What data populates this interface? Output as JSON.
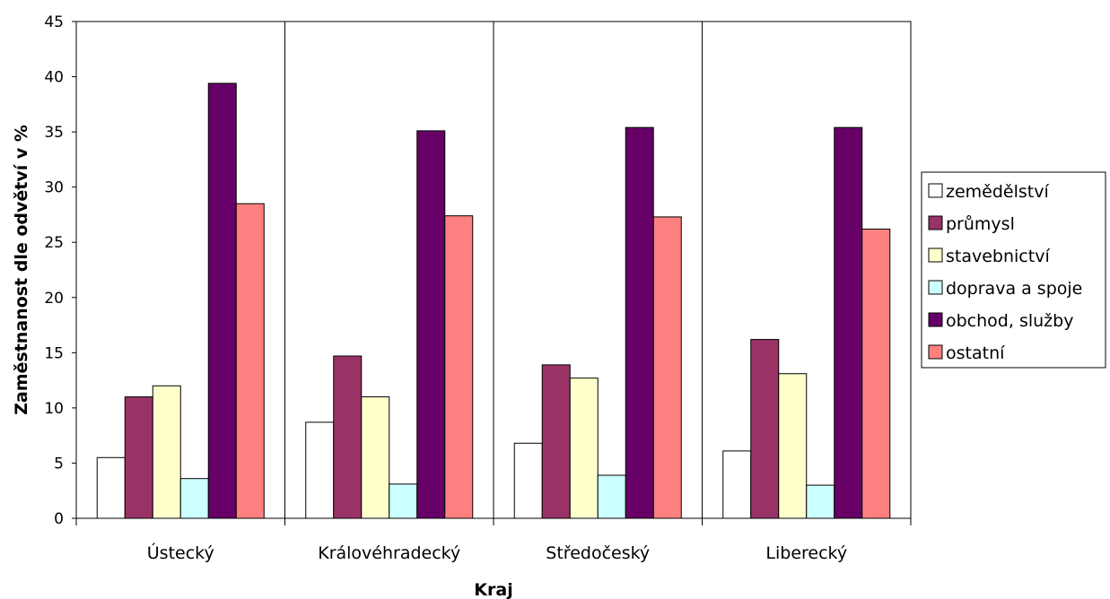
{
  "chart_data": {
    "type": "bar",
    "title": "",
    "xlabel": "Kraj",
    "ylabel": "Zaměstnanost dle odvětví v %",
    "ylim": [
      0,
      45
    ],
    "yticks": [
      0,
      5,
      10,
      15,
      20,
      25,
      30,
      35,
      40,
      45
    ],
    "grid": false,
    "legend_position": "right",
    "categories": [
      "Ústecký",
      "Královéhradecký",
      "Středočeský",
      "Liberecký"
    ],
    "series": [
      {
        "name": "zemědělství",
        "color": "#ffffff",
        "values": [
          5.5,
          8.7,
          6.8,
          6.1
        ]
      },
      {
        "name": "průmysl",
        "color": "#993366",
        "values": [
          11.0,
          14.7,
          13.9,
          16.2
        ]
      },
      {
        "name": "stavebnictví",
        "color": "#ffffcc",
        "values": [
          12.0,
          11.0,
          12.7,
          13.1
        ]
      },
      {
        "name": "doprava a spoje",
        "color": "#ccffff",
        "values": [
          3.6,
          3.1,
          3.9,
          3.0
        ]
      },
      {
        "name": "obchod, služby",
        "color": "#660066",
        "values": [
          39.4,
          35.1,
          35.4,
          35.4
        ]
      },
      {
        "name": "ostatní",
        "color": "#ff8080",
        "values": [
          28.5,
          27.4,
          27.3,
          26.2
        ]
      }
    ]
  }
}
